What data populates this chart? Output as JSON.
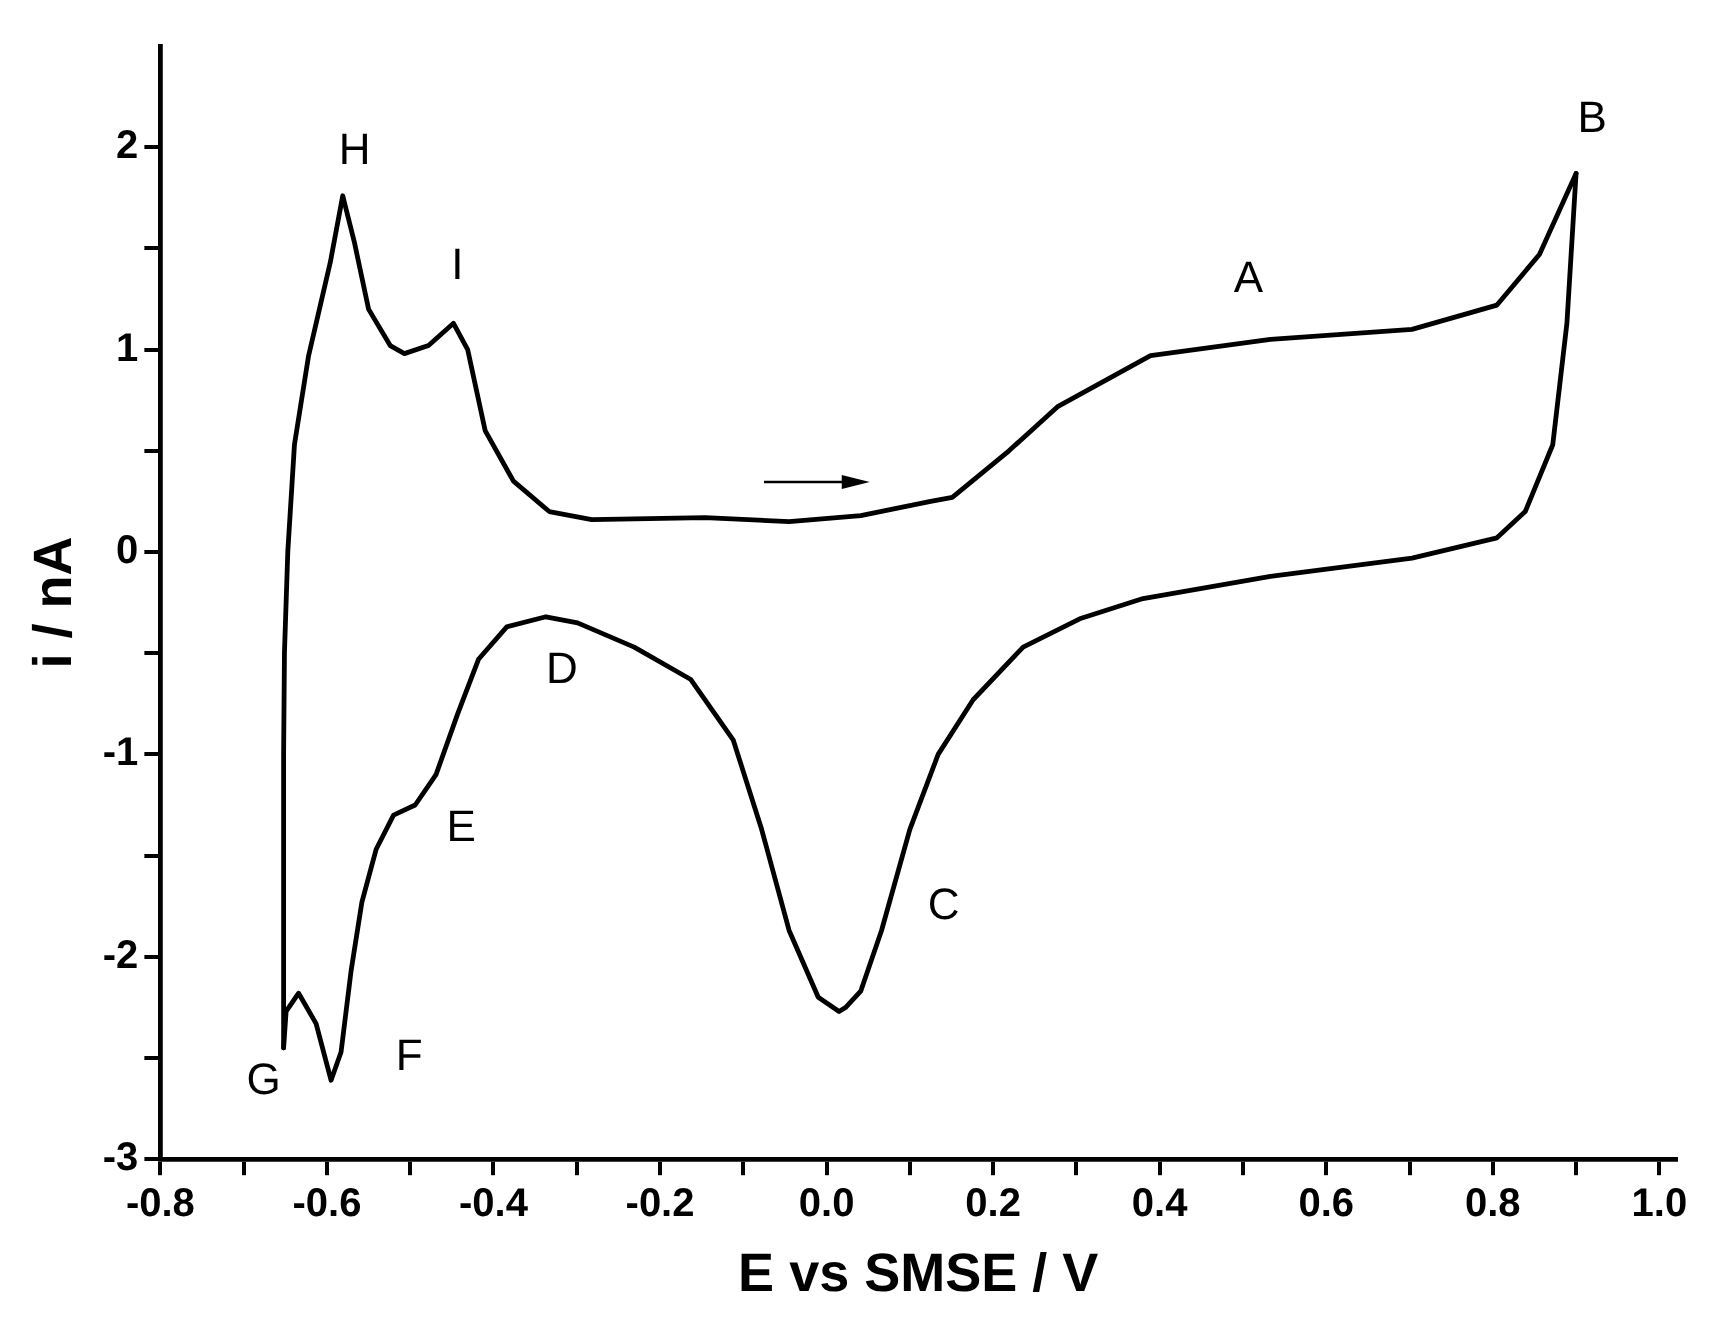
{
  "chart_data": {
    "type": "line",
    "xlabel": "E vs SMSE / V",
    "ylabel": "i / nA",
    "xlim": [
      -0.8,
      1.02
    ],
    "ylim": [
      -3,
      2.5
    ],
    "xticks": [
      -0.8,
      {
        "value": -0.7,
        "label": null
      },
      -0.6,
      {
        "value": -0.5,
        "label": null
      },
      -0.4,
      {
        "value": -0.3,
        "label": null
      },
      -0.2,
      {
        "value": -0.1,
        "label": null
      },
      {
        "value": 0,
        "label": "0.0"
      },
      {
        "value": 0.1,
        "label": null
      },
      0.2,
      {
        "value": 0.3,
        "label": null
      },
      0.4,
      {
        "value": 0.5,
        "label": null
      },
      0.6,
      {
        "value": 0.7,
        "label": null
      },
      0.8,
      {
        "value": 0.9,
        "label": null
      },
      {
        "value": 1,
        "label": "1.0"
      }
    ],
    "yticks": [
      -3,
      {
        "value": -2.5,
        "label": null
      },
      -2,
      {
        "value": -1.5,
        "label": null
      },
      -1,
      {
        "value": -0.5,
        "label": null
      },
      0,
      {
        "value": 0.5,
        "label": null
      },
      1,
      {
        "value": 1.5,
        "label": null
      },
      2
    ],
    "marker": "none",
    "line_style": "solid",
    "series": [
      {
        "color": "#000000",
        "x": [
          -0.652,
          -0.652,
          -0.651,
          -0.647,
          -0.639,
          -0.622,
          -0.609,
          -0.596,
          -0.581,
          -0.567,
          -0.55,
          -0.524,
          -0.507,
          -0.478,
          -0.448,
          -0.431,
          -0.41,
          -0.376,
          -0.333,
          -0.282,
          -0.146,
          -0.045,
          0.041,
          0.125,
          0.151,
          0.219,
          0.278,
          0.389,
          0.533,
          0.703,
          0.805,
          0.856,
          0.9
        ],
        "values": [
          -2.45,
          -1.0,
          -0.5,
          0,
          0.53,
          0.97,
          1.2,
          1.43,
          1.76,
          1.53,
          1.2,
          1.02,
          0.98,
          1.02,
          1.13,
          1.0,
          0.6,
          0.35,
          0.2,
          0.16,
          0.17,
          0.15,
          0.18,
          0.25,
          0.27,
          0.5,
          0.72,
          0.97,
          1.05,
          1.1,
          1.22,
          1.47,
          1.87
        ]
      },
      {
        "color": "#000000",
        "x": [
          -0.652,
          -0.649,
          -0.634,
          -0.613,
          -0.595,
          -0.583,
          -0.571,
          -0.558,
          -0.541,
          -0.52,
          -0.494,
          -0.469,
          -0.443,
          -0.418,
          -0.384,
          -0.337,
          -0.299,
          -0.231,
          -0.163,
          -0.112,
          -0.078,
          -0.045,
          -0.01,
          0.015,
          0.023,
          0.041,
          0.066,
          0.1,
          0.134,
          0.176,
          0.236,
          0.304,
          0.38,
          0.533,
          0.703,
          0.805,
          0.839,
          0.872,
          0.889,
          0.9
        ],
        "values": [
          -2.45,
          -2.27,
          -2.18,
          -2.33,
          -2.61,
          -2.47,
          -2.07,
          -1.73,
          -1.47,
          -1.3,
          -1.25,
          -1.1,
          -0.8,
          -0.53,
          -0.37,
          -0.32,
          -0.35,
          -0.47,
          -0.63,
          -0.93,
          -1.37,
          -1.87,
          -2.2,
          -2.27,
          -2.25,
          -2.17,
          -1.87,
          -1.37,
          -1.0,
          -0.73,
          -0.47,
          -0.33,
          -0.23,
          -0.12,
          -0.03,
          0.07,
          0.2,
          0.53,
          1.13,
          1.87
        ]
      }
    ],
    "annotations": [
      {
        "text": "A",
        "x": 0.533,
        "y": 1.05
      },
      {
        "text": "B",
        "x": 0.9,
        "y": 1.87
      },
      {
        "text": "C",
        "x": 0.066,
        "y": -1.87
      },
      {
        "text": "D",
        "x": -0.337,
        "y": -0.32
      },
      {
        "text": "E",
        "x": -0.494,
        "y": -1.25
      },
      {
        "text": "F",
        "x": -0.595,
        "y": -2.61
      },
      {
        "text": "G",
        "x": -0.652,
        "y": -2.45
      },
      {
        "text": "H",
        "x": -0.581,
        "y": 1.76
      },
      {
        "text": "I",
        "x": -0.448,
        "y": 1.13
      }
    ]
  }
}
